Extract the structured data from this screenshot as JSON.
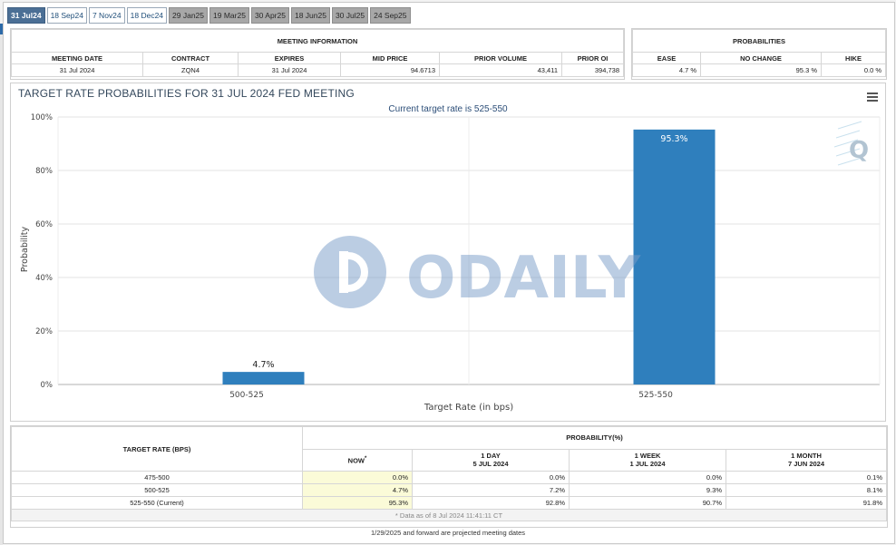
{
  "tabs": [
    {
      "label": "31 Jul24",
      "state": "active"
    },
    {
      "label": "18 Sep24",
      "state": "normal"
    },
    {
      "label": "7 Nov24",
      "state": "normal"
    },
    {
      "label": "18 Dec24",
      "state": "normal"
    },
    {
      "label": "29 Jan25",
      "state": "gray"
    },
    {
      "label": "19 Mar25",
      "state": "gray"
    },
    {
      "label": "30 Apr25",
      "state": "gray"
    },
    {
      "label": "18 Jun25",
      "state": "gray"
    },
    {
      "label": "30 Jul25",
      "state": "gray"
    },
    {
      "label": "24 Sep25",
      "state": "gray"
    }
  ],
  "meeting": {
    "title": "MEETING INFORMATION",
    "headers": [
      "MEETING DATE",
      "CONTRACT",
      "EXPIRES",
      "MID PRICE",
      "PRIOR VOLUME",
      "PRIOR OI"
    ],
    "row": [
      "31 Jul 2024",
      "ZQN4",
      "31 Jul 2024",
      "94.6713",
      "43,411",
      "394,738"
    ]
  },
  "probabilities": {
    "title": "PROBABILITIES",
    "headers": [
      "EASE",
      "NO CHANGE",
      "HIKE"
    ],
    "row": [
      "4.7 %",
      "95.3 %",
      "0.0 %"
    ]
  },
  "chart": {
    "title": "TARGET RATE PROBABILITIES FOR 31 JUL 2024 FED MEETING",
    "subtitle": "Current target rate is 525-550",
    "watermark": "ODAILY",
    "logo_letter": "Q"
  },
  "chart_data": {
    "type": "bar",
    "categories": [
      "500-525",
      "525-550"
    ],
    "values": [
      4.7,
      95.3
    ],
    "data_labels": [
      "4.7%",
      "95.3%"
    ],
    "title": "TARGET RATE PROBABILITIES FOR 31 JUL 2024 FED MEETING",
    "subtitle": "Current target rate is 525-550",
    "xlabel": "Target Rate (in bps)",
    "ylabel": "Probability",
    "ylim": [
      0,
      100
    ],
    "yticks": [
      "0%",
      "20%",
      "40%",
      "60%",
      "80%",
      "100%"
    ],
    "grid": true,
    "color": "#2f7fbd"
  },
  "bottom": {
    "rate_header": "TARGET RATE (BPS)",
    "prob_header": "PROBABILITY(%)",
    "cols": [
      {
        "l1": "NOW",
        "l2": ""
      },
      {
        "l1": "1 DAY",
        "l2": "5 JUL 2024"
      },
      {
        "l1": "1 WEEK",
        "l2": "1 JUL 2024"
      },
      {
        "l1": "1 MONTH",
        "l2": "7 JUN 2024"
      }
    ],
    "now_mark": "*",
    "rows": [
      {
        "rate": "475-500",
        "v": [
          "0.0%",
          "0.0%",
          "0.0%",
          "0.1%"
        ]
      },
      {
        "rate": "500-525",
        "v": [
          "4.7%",
          "7.2%",
          "9.3%",
          "8.1%"
        ]
      },
      {
        "rate": "525-550 (Current)",
        "v": [
          "95.3%",
          "92.8%",
          "90.7%",
          "91.8%"
        ]
      }
    ],
    "note": "* Data as of 8 Jul 2024 11:41:11 CT",
    "footer": "1/29/2025 and forward are projected meeting dates"
  }
}
